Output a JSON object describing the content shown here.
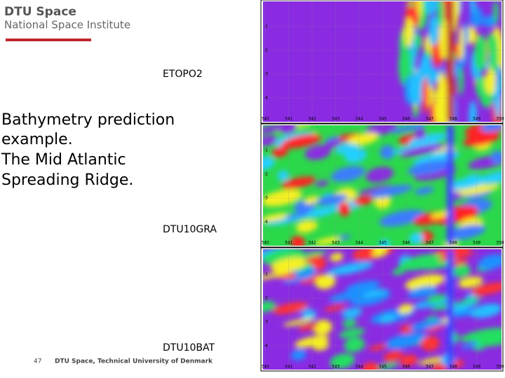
{
  "header": {
    "logo_title": "DTU Space",
    "logo_subtitle": "National Space Institute"
  },
  "body": {
    "lines": [
      "Bathymetry prediction",
      "example.",
      "The Mid Atlantic",
      "Spreading Ridge."
    ]
  },
  "panels": [
    {
      "label": "ETOPO2"
    },
    {
      "label": "DTU10GRA"
    },
    {
      "label": "DTU10BAT"
    }
  ],
  "axes": {
    "x_labels": [
      "340",
      "341",
      "342",
      "343",
      "344",
      "345",
      "346",
      "347",
      "348",
      "349",
      "350"
    ],
    "y_labels": [
      "-1",
      "-2",
      "-3",
      "-4"
    ]
  },
  "footer": {
    "page": "47",
    "text": "DTU Space, Technical University of Denmark"
  }
}
